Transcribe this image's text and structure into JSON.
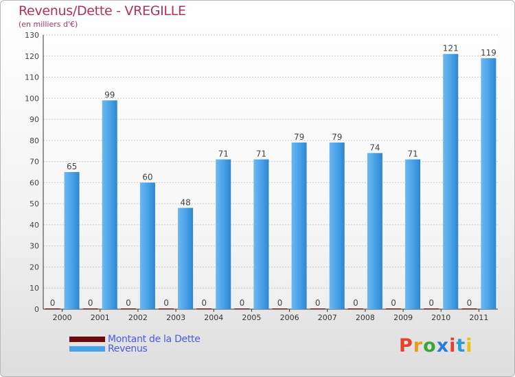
{
  "chart_data": {
    "type": "bar",
    "title": "Revenus/Dette - VREGILLE",
    "subtitle": "(en milliers d'€)",
    "categories": [
      "2000",
      "2001",
      "2002",
      "2003",
      "2004",
      "2005",
      "2006",
      "2007",
      "2008",
      "2009",
      "2010",
      "2011"
    ],
    "series": [
      {
        "name": "Montant de la Dette",
        "color": "#6b0a0a",
        "values": [
          0,
          0,
          0,
          0,
          0,
          0,
          0,
          0,
          0,
          0,
          0,
          0
        ]
      },
      {
        "name": "Revenus",
        "color": "#4aa3e8",
        "values": [
          65,
          99,
          60,
          48,
          71,
          71,
          79,
          79,
          74,
          71,
          121,
          119
        ]
      }
    ],
    "ylim": [
      0,
      130
    ],
    "yticks": [
      0,
      10,
      20,
      30,
      40,
      50,
      60,
      70,
      80,
      90,
      100,
      110,
      120,
      130
    ],
    "grid": true,
    "legend": "bottom-left"
  },
  "logo": {
    "text": "Proxiti",
    "colors": [
      "#e8402a",
      "#e89a1a",
      "#3aa63a",
      "#2a7ad8",
      "#e8402a",
      "#2a9ad8",
      "#e8c21a"
    ]
  }
}
